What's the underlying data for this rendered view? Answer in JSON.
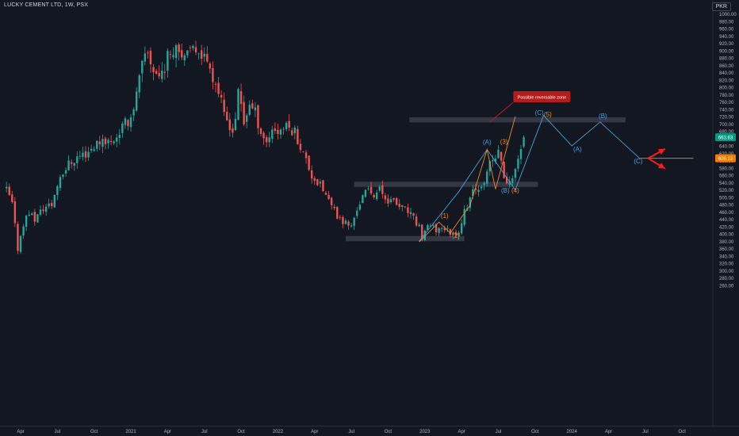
{
  "header": {
    "title": "LUCKY CEMENT LTD, 1W, PSX",
    "currency": "PKR"
  },
  "chart_data": {
    "type": "candlestick",
    "title": "LUCKY CEMENT LTD, 1W, PSX",
    "ylim": [
      260,
      1000
    ],
    "y_ticks": [
      260,
      280,
      300,
      320,
      340,
      360,
      380,
      400,
      420,
      440,
      460,
      480,
      500,
      520,
      540,
      560,
      580,
      600,
      620,
      640,
      660,
      680,
      700,
      720,
      740,
      760,
      780,
      800,
      820,
      840,
      860,
      880,
      900,
      920,
      940,
      960,
      980,
      1000
    ],
    "x_ticks": [
      {
        "label": "Apr",
        "t": 0
      },
      {
        "label": "Jul",
        "t": 13
      },
      {
        "label": "Oct",
        "t": 26
      },
      {
        "label": "2021",
        "t": 39
      },
      {
        "label": "Apr",
        "t": 52
      },
      {
        "label": "Jul",
        "t": 65
      },
      {
        "label": "Oct",
        "t": 78
      },
      {
        "label": "2022",
        "t": 91
      },
      {
        "label": "Apr",
        "t": 104
      },
      {
        "label": "Jul",
        "t": 117
      },
      {
        "label": "Oct",
        "t": 130
      },
      {
        "label": "2023",
        "t": 143
      },
      {
        "label": "Apr",
        "t": 156
      },
      {
        "label": "Jul",
        "t": 169
      },
      {
        "label": "Oct",
        "t": 182
      },
      {
        "label": "2024",
        "t": 195
      },
      {
        "label": "Apr",
        "t": 208
      },
      {
        "label": "Jul",
        "t": 221
      },
      {
        "label": "Oct",
        "t": 234
      }
    ],
    "price_keypoints": [
      [
        -5,
        520
      ],
      [
        -3,
        480
      ],
      [
        -1,
        360
      ],
      [
        1,
        430
      ],
      [
        3,
        460
      ],
      [
        5,
        440
      ],
      [
        8,
        470
      ],
      [
        11,
        480
      ],
      [
        14,
        560
      ],
      [
        17,
        590
      ],
      [
        20,
        610
      ],
      [
        23,
        620
      ],
      [
        26,
        640
      ],
      [
        29,
        660
      ],
      [
        32,
        650
      ],
      [
        35,
        680
      ],
      [
        37,
        700
      ],
      [
        39,
        720
      ],
      [
        41,
        780
      ],
      [
        43,
        860
      ],
      [
        45,
        890
      ],
      [
        47,
        850
      ],
      [
        49,
        830
      ],
      [
        51,
        860
      ],
      [
        53,
        900
      ],
      [
        55,
        920
      ],
      [
        57,
        900
      ],
      [
        59,
        880
      ],
      [
        61,
        900
      ],
      [
        63,
        910
      ],
      [
        65,
        880
      ],
      [
        67,
        870
      ],
      [
        68,
        830
      ],
      [
        70,
        790
      ],
      [
        72,
        720
      ],
      [
        74,
        700
      ],
      [
        75,
        680
      ],
      [
        76,
        720
      ],
      [
        77,
        780
      ],
      [
        78,
        750
      ],
      [
        79,
        700
      ],
      [
        81,
        760
      ],
      [
        82,
        740
      ],
      [
        83,
        730
      ],
      [
        85,
        680
      ],
      [
        87,
        650
      ],
      [
        89,
        690
      ],
      [
        91,
        680
      ],
      [
        93,
        690
      ],
      [
        95,
        690
      ],
      [
        97,
        680
      ],
      [
        99,
        640
      ],
      [
        101,
        600
      ],
      [
        103,
        560
      ],
      [
        105,
        540
      ],
      [
        107,
        520
      ],
      [
        109,
        490
      ],
      [
        111,
        460
      ],
      [
        113,
        440
      ],
      [
        115,
        430
      ],
      [
        117,
        420
      ],
      [
        119,
        470
      ],
      [
        121,
        500
      ],
      [
        123,
        520
      ],
      [
        125,
        510
      ],
      [
        127,
        520
      ],
      [
        129,
        500
      ],
      [
        131,
        490
      ],
      [
        133,
        480
      ],
      [
        135,
        470
      ],
      [
        137,
        460
      ],
      [
        139,
        440
      ],
      [
        141,
        420
      ],
      [
        142,
        390
      ],
      [
        143,
        410
      ],
      [
        145,
        420
      ],
      [
        147,
        410
      ],
      [
        149,
        420
      ],
      [
        151,
        410
      ],
      [
        153,
        400
      ],
      [
        155,
        410
      ],
      [
        157,
        460
      ],
      [
        159,
        500
      ],
      [
        161,
        520
      ],
      [
        163,
        540
      ],
      [
        165,
        560
      ],
      [
        166,
        590
      ],
      [
        167,
        600
      ],
      [
        168,
        610
      ],
      [
        169,
        620
      ],
      [
        170,
        600
      ],
      [
        171,
        560
      ],
      [
        172,
        530
      ],
      [
        173,
        540
      ],
      [
        174,
        560
      ],
      [
        175,
        580
      ],
      [
        176,
        600
      ],
      [
        177,
        620
      ],
      [
        178,
        670
      ]
    ],
    "zones": [
      {
        "x1": 137.5,
        "x2": 214,
        "y1": 704,
        "y2": 718
      },
      {
        "x1": 118,
        "x2": 183,
        "y1": 528,
        "y2": 542
      },
      {
        "x1": 115,
        "x2": 157,
        "y1": 380,
        "y2": 394
      }
    ],
    "wave_blue": [
      [
        141,
        380
      ],
      [
        155,
        515
      ],
      [
        165,
        630
      ],
      [
        175,
        520
      ],
      [
        185,
        723
      ],
      [
        195,
        640
      ],
      [
        205,
        705
      ],
      [
        219,
        606
      ]
    ],
    "wave_orange": [
      [
        141,
        378
      ],
      [
        148,
        432
      ],
      [
        152,
        402
      ],
      [
        159,
        478
      ],
      [
        165,
        630
      ],
      [
        168,
        522
      ],
      [
        175,
        720
      ]
    ],
    "wave_labels_blue": [
      {
        "t": 165,
        "v": 644,
        "text": "(A)"
      },
      {
        "t": 171.5,
        "v": 512,
        "text": "(B)"
      },
      {
        "t": 183.5,
        "v": 724,
        "text": "(C)"
      },
      {
        "t": 197,
        "v": 625,
        "text": "(A)"
      },
      {
        "t": 206,
        "v": 716,
        "text": "(B)"
      },
      {
        "t": 218.5,
        "v": 592,
        "text": "(C)"
      }
    ],
    "wave_labels_orange": [
      {
        "t": 150,
        "v": 443,
        "text": "(1)"
      },
      {
        "t": 154,
        "v": 389,
        "text": "(2)"
      },
      {
        "t": 171,
        "v": 645,
        "text": "(3)"
      },
      {
        "t": 175,
        "v": 512,
        "text": "(4)"
      },
      {
        "t": 186.5,
        "v": 720,
        "text": "(5)"
      }
    ],
    "annotation": {
      "text": "Possible reversable zone",
      "from_t": 166,
      "from_v": 705,
      "to_t": 176,
      "to_v": 772
    },
    "horizontal_line": {
      "from_t": 219,
      "to_t": 238,
      "v": 606
    },
    "arrows": [
      {
        "from_t": 222,
        "from_v": 606,
        "to_t": 228,
        "to_v": 632
      },
      {
        "from_t": 222,
        "from_v": 606,
        "to_t": 228,
        "to_v": 578
      }
    ],
    "price_labels": [
      {
        "text": "663.63",
        "v": 663.63,
        "bg": "#089981"
      },
      {
        "text": "606.12",
        "v": 606.12,
        "bg": "#f57c00"
      }
    ],
    "colors": {
      "background": "#131722",
      "up": "#26a69a",
      "down": "#ef5350",
      "wave_blue": "#4a9fd8",
      "wave_orange": "#f08a24",
      "zone": "#3a3e4a",
      "axis_text": "#b2b5be",
      "annotation_bg": "#b71c1c",
      "annotation_text": "#ffffff"
    }
  }
}
